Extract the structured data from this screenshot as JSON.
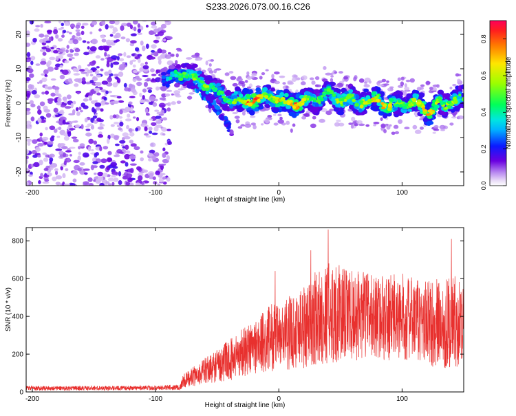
{
  "title": "S233.2026.073.00.16.C26",
  "colorbar": {
    "label": "Normalized spectral amplitude",
    "ticks": [
      "0.0",
      "0.2",
      "0.4",
      "0.6",
      "0.8"
    ],
    "tick_values": [
      0.0,
      0.2,
      0.4,
      0.6,
      0.8
    ],
    "range": [
      0.0,
      0.9
    ]
  },
  "chart_data": [
    {
      "type": "heatmap",
      "title": "S233.2026.073.00.16.C26",
      "xlabel": "Height of straight line (km)",
      "ylabel": "Frequency (Hz)",
      "xlim": [
        -205,
        150
      ],
      "ylim": [
        -24,
        24
      ],
      "x_ticks": [
        -200,
        -100,
        0,
        100
      ],
      "x_tick_labels": [
        "-200",
        "-100",
        "0",
        "100"
      ],
      "y_ticks": [
        -20,
        -10,
        0,
        10,
        20
      ],
      "y_tick_labels": [
        "-20",
        "-10",
        "0",
        "10",
        "20"
      ],
      "noise_region_x": [
        -205,
        -88
      ],
      "ridge": {
        "x": [
          -95,
          -90,
          -80,
          -75,
          -70,
          -65,
          -60,
          -55,
          -50,
          -45,
          -40,
          -35,
          -30,
          -25,
          -20,
          -15,
          -10,
          -5,
          0,
          5,
          10,
          15,
          20,
          25,
          30,
          35,
          40,
          45,
          50,
          55,
          60,
          65,
          70,
          75,
          80,
          85,
          90,
          95,
          100,
          105,
          110,
          115,
          120,
          125,
          130,
          135,
          140,
          145,
          150
        ],
        "freq": [
          8,
          7,
          8,
          9,
          7,
          7,
          5,
          5,
          3,
          2,
          1,
          1,
          0,
          1,
          1,
          1,
          2,
          2,
          1,
          0,
          0,
          0,
          0,
          1,
          1,
          2,
          3,
          2,
          1,
          1,
          1,
          0,
          1,
          0,
          1,
          0,
          -1,
          -1,
          0,
          0,
          0,
          -1,
          -2,
          -2,
          0,
          -1,
          1,
          1,
          1
        ],
        "amp": [
          0.3,
          0.4,
          0.5,
          0.55,
          0.6,
          0.6,
          0.6,
          0.55,
          0.5,
          0.5,
          0.5,
          0.6,
          0.6,
          0.85,
          0.9,
          0.8,
          0.6,
          0.6,
          0.85,
          0.7,
          0.75,
          0.85,
          0.65,
          0.6,
          0.5,
          0.55,
          0.55,
          0.6,
          0.65,
          0.6,
          0.55,
          0.6,
          0.65,
          0.7,
          0.75,
          0.8,
          0.75,
          0.6,
          0.55,
          0.6,
          0.7,
          0.65,
          0.85,
          0.8,
          0.55,
          0.6,
          0.65,
          0.6,
          0.55
        ]
      },
      "branch": {
        "x": [
          -75,
          -70,
          -65,
          -60,
          -55,
          -50,
          -45,
          -40,
          -38
        ],
        "freq": [
          8,
          6,
          4,
          2,
          0,
          -2,
          -4,
          -7,
          -10
        ],
        "amp": [
          0.5,
          0.45,
          0.4,
          0.35,
          0.3,
          0.3,
          0.25,
          0.25,
          0.2
        ]
      }
    },
    {
      "type": "line",
      "xlabel": "Height of straight line (km)",
      "ylabel": "SNR (10 * v/v)",
      "xlim": [
        -205,
        150
      ],
      "ylim": [
        0,
        870
      ],
      "x_ticks": [
        -200,
        -100,
        0,
        100
      ],
      "x_tick_labels": [
        "-200",
        "-100",
        "0",
        "100"
      ],
      "y_ticks": [
        0,
        200,
        400,
        600,
        800
      ],
      "y_tick_labels": [
        "0",
        "200",
        "400",
        "600",
        "800"
      ],
      "color": "#e8302e",
      "envelope": {
        "x": [
          -205,
          -150,
          -100,
          -80,
          -78,
          -70,
          -60,
          -50,
          -40,
          -30,
          -20,
          -10,
          -5,
          0,
          10,
          20,
          30,
          40,
          50,
          60,
          70,
          80,
          90,
          100,
          110,
          120,
          130,
          140,
          150
        ],
        "mean": [
          20,
          20,
          22,
          25,
          55,
          80,
          110,
          140,
          170,
          210,
          240,
          270,
          300,
          280,
          320,
          350,
          390,
          420,
          410,
          400,
          410,
          400,
          390,
          400,
          380,
          370,
          360,
          370,
          380
        ],
        "spread": [
          12,
          12,
          12,
          15,
          35,
          50,
          70,
          90,
          110,
          130,
          150,
          170,
          190,
          170,
          200,
          230,
          250,
          270,
          260,
          240,
          230,
          220,
          230,
          230,
          220,
          230,
          240,
          250,
          230
        ]
      },
      "peaks": [
        {
          "x": 40,
          "y": 860
        },
        {
          "x": -3,
          "y": 640
        },
        {
          "x": 140,
          "y": 810
        },
        {
          "x": 26,
          "y": 750
        }
      ]
    }
  ]
}
